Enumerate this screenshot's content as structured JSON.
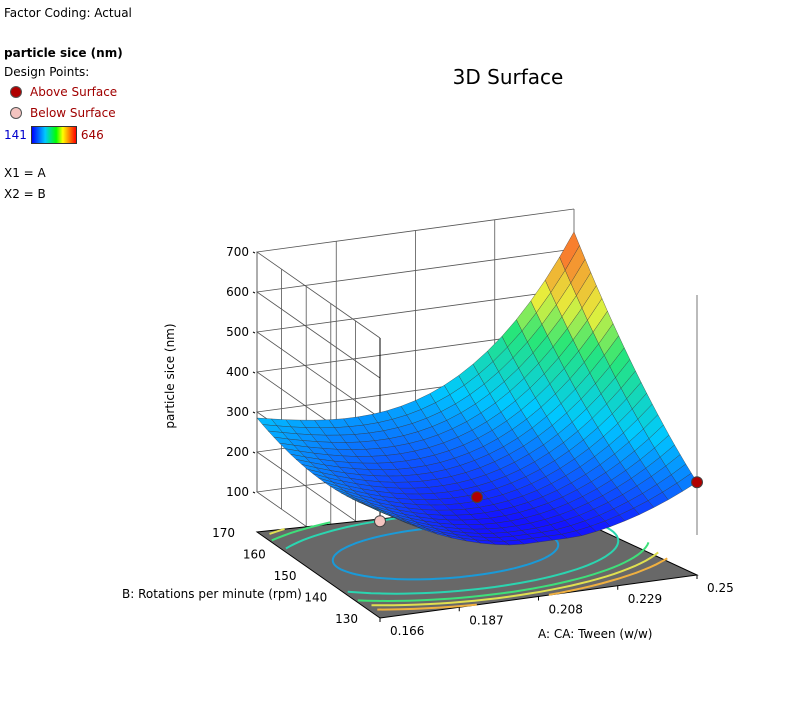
{
  "header": {
    "factor_coding": "Factor Coding: Actual"
  },
  "legend": {
    "response_title": "particle sice (nm)",
    "design_points_label": "Design Points:",
    "above_label": "Above Surface",
    "below_label": "Below Surface",
    "above_color": "#b00000",
    "below_color": "#f4c4c0",
    "range_min": "141",
    "range_max": "646",
    "x1": "X1 = A",
    "x2": "X2 = B"
  },
  "chart_data": {
    "type": "surface",
    "title": "3D Surface",
    "xlabel": "A: CA: Tween  (w/w)",
    "ylabel": "B: Rotations per minute (rpm)",
    "zlabel": "particle sice (nm)",
    "x_range": [
      0.166,
      0.25
    ],
    "y_range": [
      130,
      170
    ],
    "z_range": [
      0,
      700
    ],
    "x_ticks": [
      "0.166",
      "0.187",
      "0.208",
      "0.229",
      "0.25"
    ],
    "y_ticks": [
      "130",
      "140",
      "150",
      "160",
      "170"
    ],
    "z_ticks": [
      "100",
      "200",
      "300",
      "400",
      "500",
      "600",
      "700"
    ],
    "surface_corners": [
      {
        "x": 0.166,
        "y": 130,
        "z": 270
      },
      {
        "x": 0.166,
        "y": 170,
        "z": 285
      },
      {
        "x": 0.25,
        "y": 130,
        "z": 232
      },
      {
        "x": 0.25,
        "y": 170,
        "z": 643
      }
    ],
    "design_points": [
      {
        "x": 0.25,
        "y": 130,
        "z": 232,
        "type": "above"
      },
      {
        "x": 0.208,
        "y": 150,
        "z": 141,
        "type": "above"
      },
      {
        "x": 0.166,
        "y": 130,
        "z": 242,
        "type": "below"
      }
    ],
    "contours_on_floor": true
  }
}
